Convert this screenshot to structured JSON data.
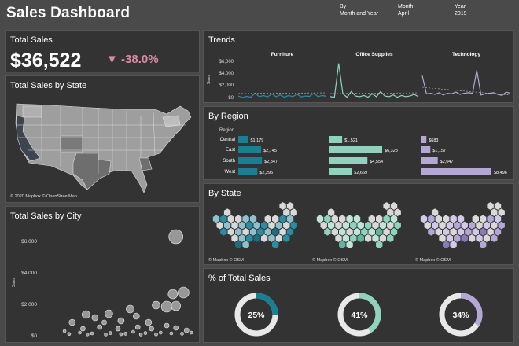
{
  "header": {
    "title": "Sales Dashboard",
    "filters": [
      {
        "label": "By",
        "value": "Month and Year"
      },
      {
        "label": "Month",
        "value": "April"
      },
      {
        "label": "Year",
        "value": "2019"
      }
    ]
  },
  "total_sales": {
    "title": "Total Sales",
    "value": "$36,522",
    "delta_text": "-38.0%",
    "delta_icon": "down-triangle-icon"
  },
  "state_map": {
    "title": "Total Sales by State",
    "attribution": "© 2020 Mapbox © OpenStreetMap"
  },
  "trends": {
    "title": "Trends",
    "ylabel": "Sales",
    "yticks": [
      "$6,000",
      "$4,000",
      "$2,000",
      "$0"
    ],
    "categories": [
      "Furniture",
      "Office Supplies",
      "Technology"
    ],
    "colors": [
      "#2a8da3",
      "#8fd3bf",
      "#b4a7d6"
    ]
  },
  "region": {
    "title": "By Region",
    "col_header": "Region",
    "regions": [
      "Central",
      "East",
      "South",
      "West"
    ],
    "bars": [
      {
        "category": "Furniture",
        "color": "#1b7f93",
        "values": [
          1179,
          2745,
          2847,
          2295
        ],
        "labels": [
          "$1,179",
          "$2,745",
          "$2,847",
          "$2,295"
        ]
      },
      {
        "category": "Office Supplies",
        "color": "#8fd3bf",
        "values": [
          1521,
          6328,
          4554,
          2669
        ],
        "labels": [
          "$1,521",
          "$6,328",
          "$4,554",
          "$2,669"
        ]
      },
      {
        "category": "Technology",
        "color": "#b4a7d6",
        "values": [
          683,
          1157,
          2047,
          8496
        ],
        "labels": [
          "$683",
          "$1,157",
          "$2,047",
          "$8,496"
        ]
      }
    ]
  },
  "by_state": {
    "title": "By State",
    "attribution": "© Mapbox © OSM"
  },
  "city": {
    "title": "Total Sales by City",
    "ylabel": "Sales",
    "yticks": [
      "$6,000",
      "$4,000",
      "$2,000",
      "$0"
    ]
  },
  "pct": {
    "title": "% of Total Sales",
    "donuts": [
      {
        "label": "25%",
        "value": 25,
        "color": "#1b7f93"
      },
      {
        "label": "41%",
        "value": 41,
        "color": "#8fd3bf"
      },
      {
        "label": "34%",
        "value": 34,
        "color": "#b4a7d6"
      }
    ]
  },
  "chart_data": [
    {
      "type": "bar",
      "title": "By Region",
      "categories": [
        "Central",
        "East",
        "South",
        "West"
      ],
      "series": [
        {
          "name": "Furniture",
          "values": [
            1179,
            2745,
            2847,
            2295
          ]
        },
        {
          "name": "Office Supplies",
          "values": [
            1521,
            6328,
            4554,
            2669
          ]
        },
        {
          "name": "Technology",
          "values": [
            683,
            1157,
            2047,
            8496
          ]
        }
      ]
    },
    {
      "type": "pie",
      "title": "% of Total Sales",
      "values": [
        25,
        41,
        34
      ]
    },
    {
      "type": "line",
      "title": "Trends",
      "ylabel": "Sales",
      "ylim": [
        0,
        7000
      ],
      "series": [
        {
          "name": "Furniture",
          "values": [
            400,
            150,
            350,
            200,
            900,
            300,
            500,
            250,
            800,
            300,
            600,
            200,
            500,
            300,
            700,
            250,
            400,
            350,
            900,
            300,
            500,
            350
          ]
        },
        {
          "name": "Office Supplies",
          "values": [
            300,
            200,
            6200,
            800,
            200,
            1200,
            400,
            300,
            500,
            200,
            800,
            300,
            1200,
            400,
            300,
            600,
            200,
            500,
            300,
            400,
            700,
            300
          ]
        },
        {
          "name": "Technology",
          "values": [
            4000,
            800,
            900,
            700,
            1000,
            600,
            900,
            800,
            1100,
            700,
            900,
            1000,
            900,
            5000,
            600,
            800,
            900,
            1000,
            700,
            500,
            1100,
            900
          ]
        }
      ]
    },
    {
      "type": "scatter",
      "title": "Total Sales by City",
      "ylabel": "Sales",
      "ylim": [
        0,
        6500
      ],
      "points": [
        [
          0.88,
          6250,
          9
        ],
        [
          0.93,
          2700,
          7
        ],
        [
          0.86,
          2600,
          6
        ],
        [
          0.82,
          1800,
          7
        ],
        [
          0.88,
          1850,
          6
        ],
        [
          0.75,
          1900,
          5
        ],
        [
          0.58,
          1650,
          5
        ],
        [
          0.44,
          1350,
          5
        ],
        [
          0.62,
          1200,
          4
        ],
        [
          0.29,
          1300,
          5
        ],
        [
          0.35,
          1100,
          4
        ],
        [
          0.7,
          800,
          4
        ],
        [
          0.52,
          900,
          4
        ],
        [
          0.82,
          600,
          3
        ],
        [
          0.41,
          800,
          3
        ],
        [
          0.2,
          800,
          4
        ],
        [
          0.27,
          400,
          3
        ],
        [
          0.38,
          500,
          3
        ],
        [
          0.5,
          400,
          3
        ],
        [
          0.63,
          500,
          3
        ],
        [
          0.72,
          400,
          3
        ],
        [
          0.88,
          450,
          3
        ],
        [
          0.95,
          300,
          3
        ],
        [
          0.15,
          250,
          2
        ],
        [
          0.25,
          150,
          2
        ],
        [
          0.33,
          100,
          2
        ],
        [
          0.45,
          120,
          2
        ],
        [
          0.55,
          80,
          2
        ],
        [
          0.6,
          200,
          2
        ],
        [
          0.68,
          120,
          2
        ],
        [
          0.78,
          150,
          2
        ],
        [
          0.85,
          100,
          2
        ],
        [
          0.92,
          80,
          2
        ],
        [
          0.18,
          60,
          2
        ],
        [
          0.3,
          40,
          2
        ],
        [
          0.42,
          30,
          2
        ],
        [
          0.52,
          50,
          2
        ],
        [
          0.65,
          30,
          2
        ],
        [
          0.75,
          40,
          2
        ],
        [
          0.98,
          150,
          2
        ]
      ]
    }
  ]
}
